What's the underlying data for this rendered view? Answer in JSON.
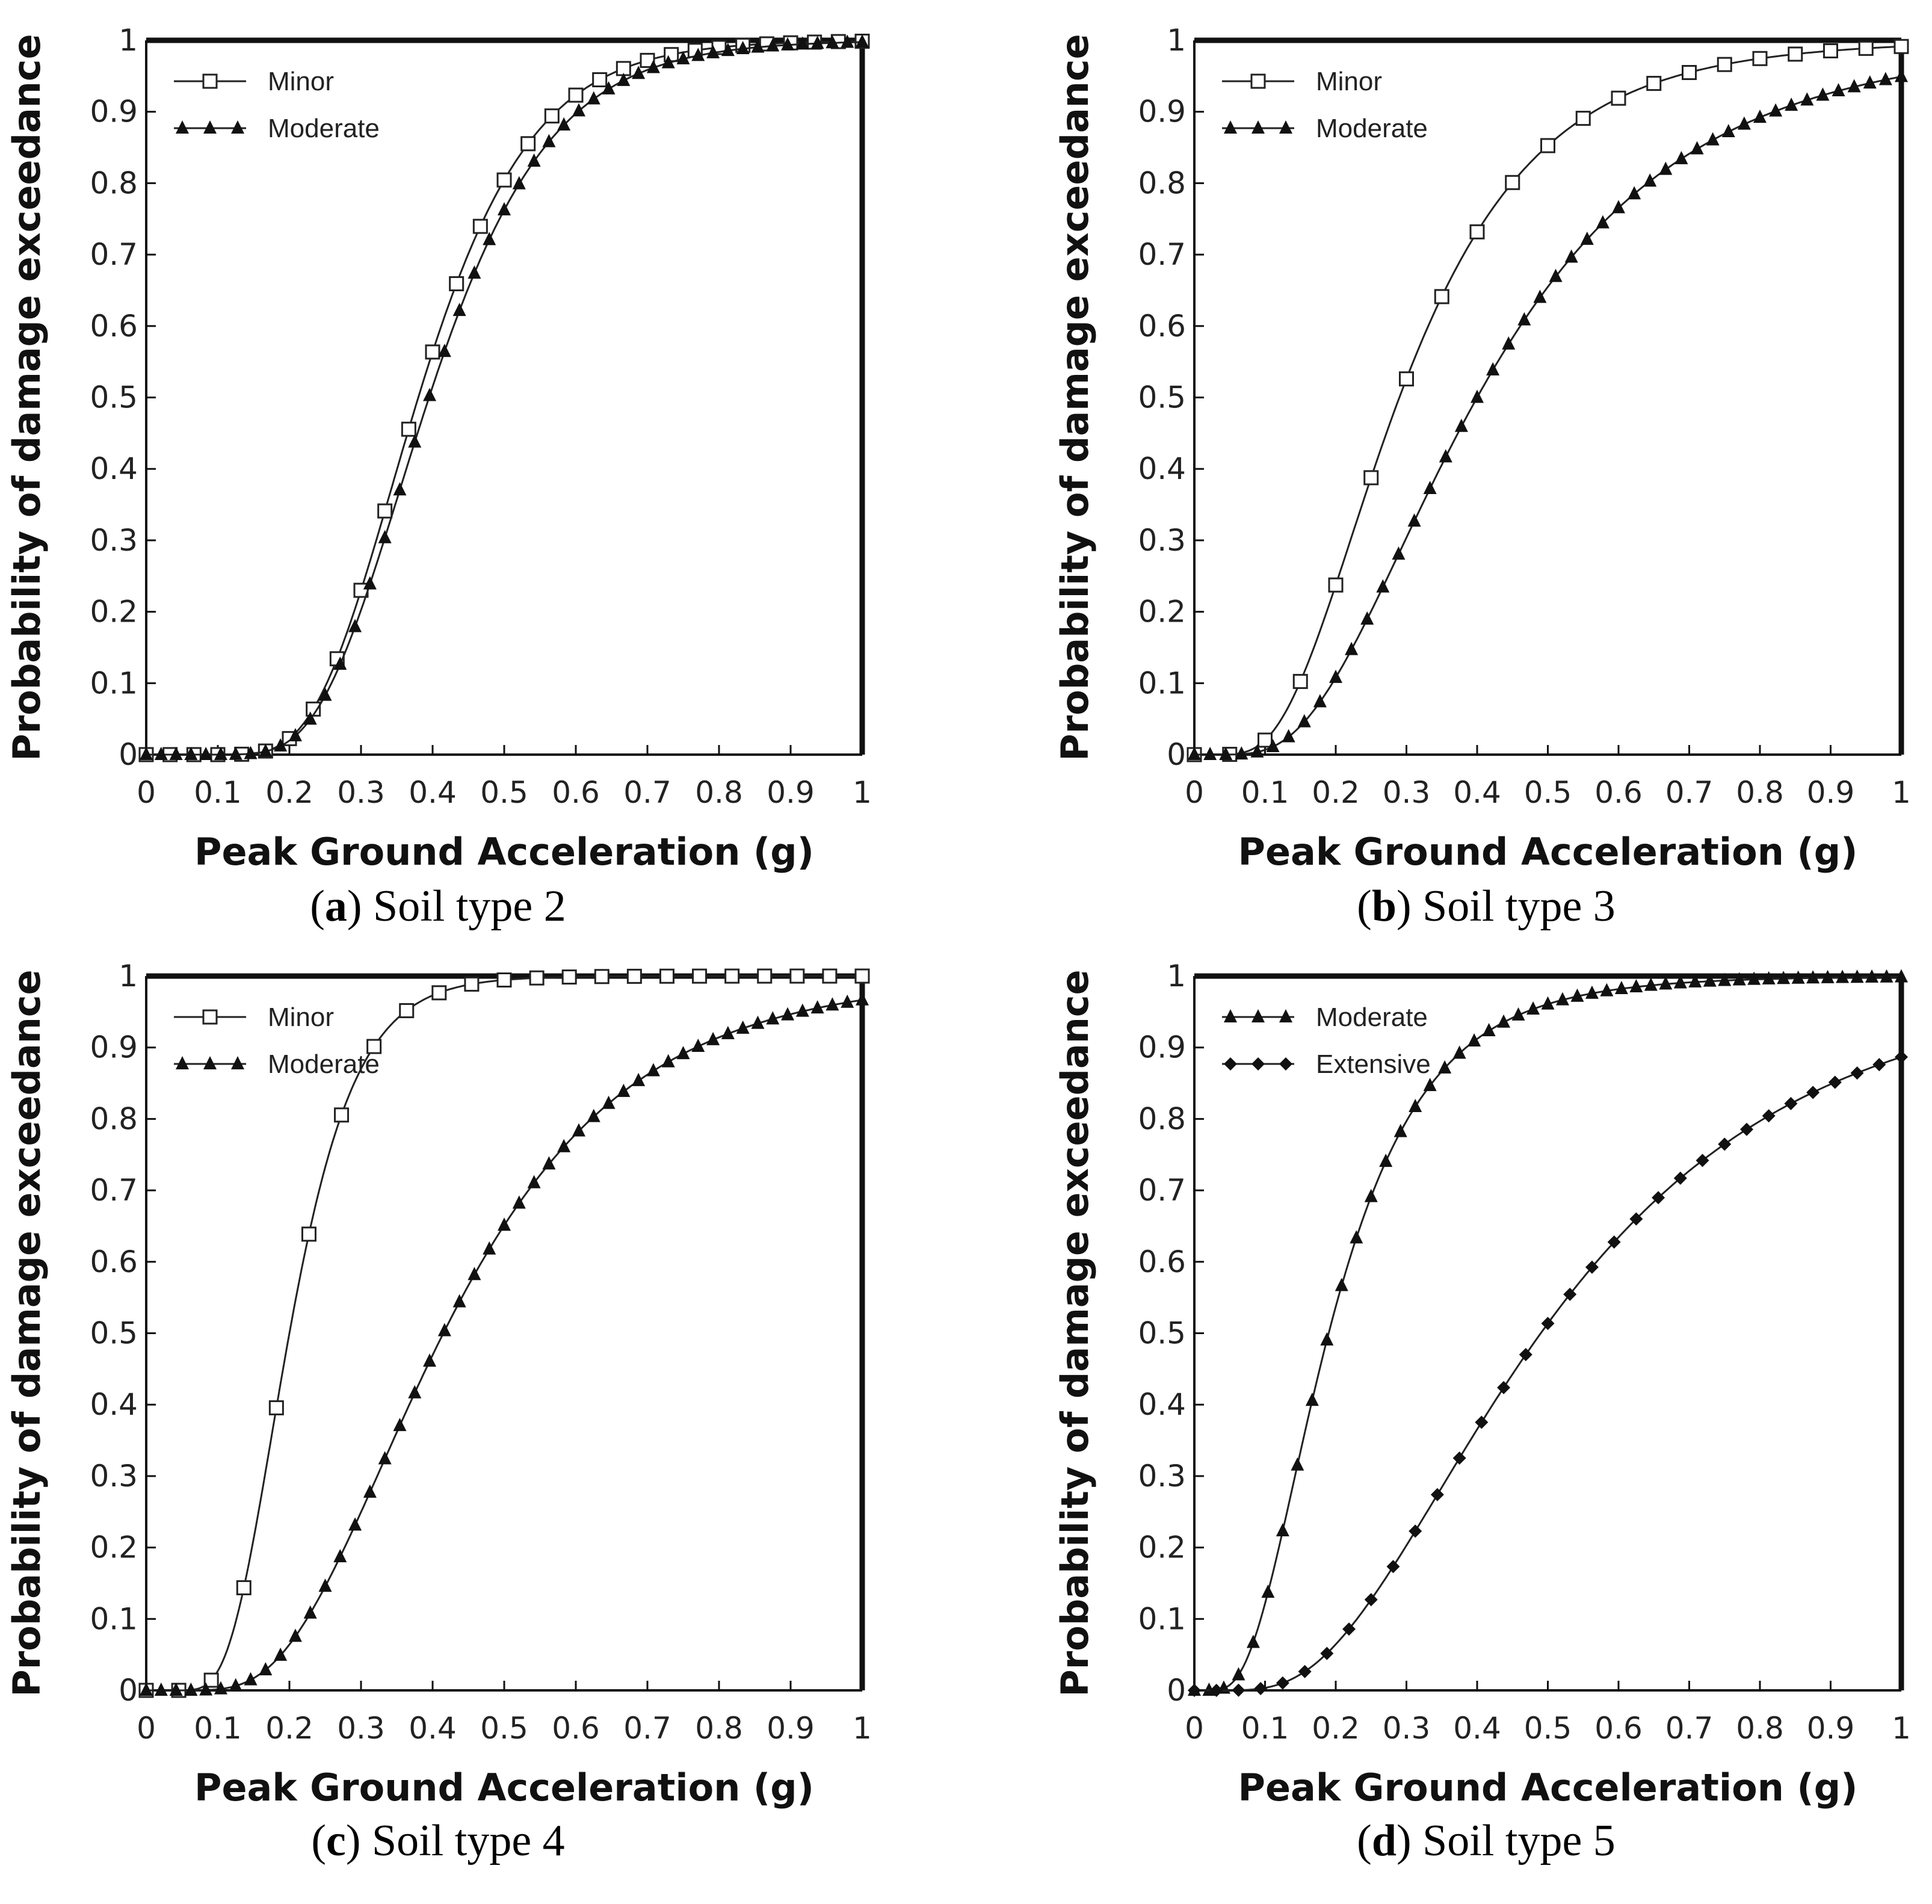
{
  "chart_data": [
    {
      "type": "line",
      "caption_letter": "a",
      "caption_text": "Soil type 2",
      "xlabel": "Peak Ground Acceleration (g)",
      "ylabel": "Probability of damage exceedance",
      "xlim": [
        0,
        1
      ],
      "ylim": [
        0,
        1
      ],
      "x_ticks": [
        "0",
        "0.1",
        "0.2",
        "0.3",
        "0.4",
        "0.5",
        "0.6",
        "0.7",
        "0.8",
        "0.9",
        "1"
      ],
      "y_ticks": [
        "0",
        "0.1",
        "0.2",
        "0.3",
        "0.4",
        "0.5",
        "0.6",
        "0.7",
        "0.8",
        "0.9",
        "1"
      ],
      "legend_position": "top-left",
      "series": [
        {
          "name": "Minor",
          "marker": "square-open",
          "median": 0.38,
          "beta": 0.32,
          "marker_count": 30
        },
        {
          "name": "Moderate",
          "marker": "triangle-filled",
          "median": 0.395,
          "beta": 0.33,
          "marker_count": 48
        }
      ]
    },
    {
      "type": "line",
      "caption_letter": "b",
      "caption_text": "Soil type 3",
      "xlabel": "Peak Ground Acceleration (g)",
      "ylabel": "Probability of damage exceedance",
      "xlim": [
        0,
        1
      ],
      "ylim": [
        0,
        1
      ],
      "x_ticks": [
        "0",
        "0.1",
        "0.2",
        "0.3",
        "0.4",
        "0.5",
        "0.6",
        "0.7",
        "0.8",
        "0.9",
        "1"
      ],
      "y_ticks": [
        "0",
        "0.1",
        "0.2",
        "0.3",
        "0.4",
        "0.5",
        "0.6",
        "0.7",
        "0.8",
        "0.9",
        "1"
      ],
      "legend_position": "top-left",
      "series": [
        {
          "name": "Minor",
          "marker": "square-open",
          "median": 0.29,
          "beta": 0.52,
          "marker_count": 20
        },
        {
          "name": "Moderate",
          "marker": "triangle-filled",
          "median": 0.4,
          "beta": 0.56,
          "marker_count": 45
        }
      ]
    },
    {
      "type": "line",
      "caption_letter": "c",
      "caption_text": "Soil type 4",
      "xlabel": "Peak Ground Acceleration (g)",
      "ylabel": "Probability of damage exceedance",
      "xlim": [
        0,
        1
      ],
      "ylim": [
        0,
        1
      ],
      "x_ticks": [
        "0",
        "0.1",
        "0.2",
        "0.3",
        "0.4",
        "0.5",
        "0.6",
        "0.7",
        "0.8",
        "0.9",
        "1"
      ],
      "y_ticks": [
        "0",
        "0.1",
        "0.2",
        "0.3",
        "0.4",
        "0.5",
        "0.6",
        "0.7",
        "0.8",
        "0.9",
        "1"
      ],
      "legend_position": "top-left",
      "series": [
        {
          "name": "Minor",
          "marker": "square-open",
          "median": 0.2,
          "beta": 0.36,
          "marker_count": 22
        },
        {
          "name": "Moderate",
          "marker": "triangle-filled",
          "median": 0.415,
          "beta": 0.48,
          "marker_count": 48
        }
      ]
    },
    {
      "type": "line",
      "caption_letter": "d",
      "caption_text": "Soil type 5",
      "xlabel": "Peak Ground Acceleration (g)",
      "ylabel": "Probability of damage exceedance",
      "xlim": [
        0,
        1
      ],
      "ylim": [
        0,
        1
      ],
      "x_ticks": [
        "0",
        "0.1",
        "0.2",
        "0.3",
        "0.4",
        "0.5",
        "0.6",
        "0.7",
        "0.8",
        "0.9",
        "1"
      ],
      "y_ticks": [
        "0",
        "0.1",
        "0.2",
        "0.3",
        "0.4",
        "0.5",
        "0.6",
        "0.7",
        "0.8",
        "0.9",
        "1"
      ],
      "legend_position": "top-left",
      "series": [
        {
          "name": "Moderate",
          "marker": "triangle-filled",
          "median": 0.19,
          "beta": 0.55,
          "marker_count": 48
        },
        {
          "name": "Extensive",
          "marker": "diamond-filled",
          "median": 0.49,
          "beta": 0.59,
          "marker_count": 32
        }
      ]
    }
  ]
}
